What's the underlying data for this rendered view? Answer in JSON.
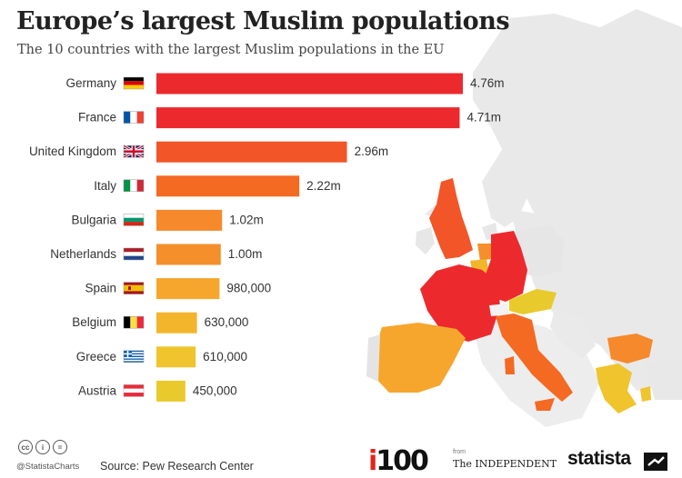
{
  "header": {
    "title": "Europe’s largest Muslim populations",
    "subtitle": "The 10 countries with the largest Muslim populations in the EU"
  },
  "chart_data": {
    "type": "bar",
    "orientation": "horizontal",
    "title": "Europe’s largest Muslim populations",
    "subtitle": "The 10 countries with the largest Muslim populations in the EU",
    "unit": "people",
    "categories": [
      "Germany",
      "France",
      "United Kingdom",
      "Italy",
      "Bulgaria",
      "Netherlands",
      "Spain",
      "Belgium",
      "Greece",
      "Austria"
    ],
    "values": [
      4760000,
      4710000,
      2960000,
      2220000,
      1020000,
      1000000,
      980000,
      630000,
      610000,
      450000
    ],
    "value_labels": [
      "4.76m",
      "4.71m",
      "2.96m",
      "2.22m",
      "1.02m",
      "1.00m",
      "980,000",
      "630,000",
      "610,000",
      "450,000"
    ],
    "colors": [
      "#ec2a2e",
      "#ec2a2e",
      "#f25527",
      "#f46a23",
      "#f5892b",
      "#f58f2b",
      "#f6a62c",
      "#f3b52c",
      "#efc42d",
      "#e9ca2c"
    ],
    "flags": [
      "germany-flag",
      "france-flag",
      "united-kingdom-flag",
      "italy-flag",
      "bulgaria-flag",
      "netherlands-flag",
      "spain-flag",
      "belgium-flag",
      "greece-flag",
      "austria-flag"
    ],
    "xlim": [
      0,
      4760000
    ]
  },
  "footer": {
    "cc_icons": [
      "cc",
      "i",
      "="
    ],
    "handle": "@StatistaCharts",
    "source": "Source: Pew Research Center",
    "i100_prefix": "i",
    "i100_suffix": "100",
    "independent_from": "from",
    "independent": "The INDEPENDENT",
    "brand": "statista"
  }
}
